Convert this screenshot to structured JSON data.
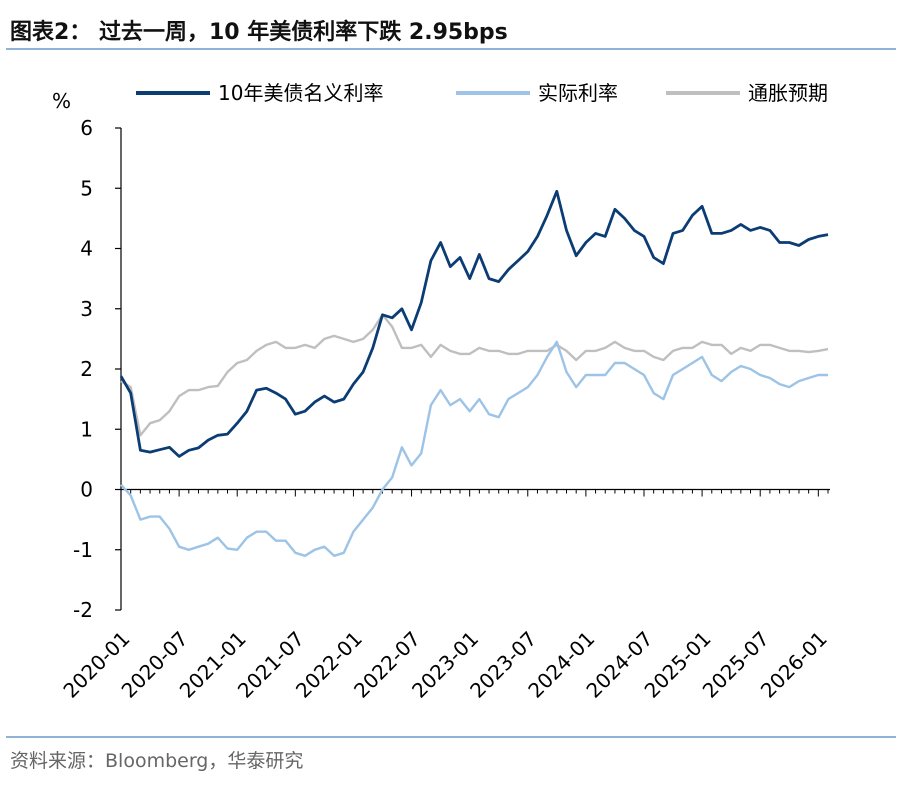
{
  "title": "图表2：  过去一周，10 年美债利率下跌 2.95bps",
  "source": "资料来源：Bloomberg，华泰研究",
  "colors": {
    "nominal": "#0b3c74",
    "real": "#9dc3e6",
    "breakeven": "#bfbfbf",
    "axis": "#000000"
  },
  "chart_data": {
    "type": "line",
    "ylabel": "%",
    "xlabel": "",
    "ylim": [
      -2,
      6
    ],
    "yticks": [
      "6",
      "5",
      "4",
      "3",
      "2",
      "1",
      "0",
      "-1",
      "-2"
    ],
    "xlim": [
      "2020-01",
      "2026-02"
    ],
    "xticks": [
      "2020-01",
      "2020-07",
      "2021-01",
      "2021-07",
      "2022-01",
      "2022-07",
      "2023-01",
      "2023-07",
      "2024-01",
      "2024-07",
      "2025-01",
      "2025-07",
      "2026-01"
    ],
    "legend_position": "top",
    "grid": false,
    "series": [
      {
        "name": "10年美债名义利率",
        "x": [
          "2020-01",
          "2020-02",
          "2020-03",
          "2020-04",
          "2020-05",
          "2020-06",
          "2020-07",
          "2020-08",
          "2020-09",
          "2020-10",
          "2020-11",
          "2020-12",
          "2021-01",
          "2021-02",
          "2021-03",
          "2021-04",
          "2021-05",
          "2021-06",
          "2021-07",
          "2021-08",
          "2021-09",
          "2021-10",
          "2021-11",
          "2021-12",
          "2022-01",
          "2022-02",
          "2022-03",
          "2022-04",
          "2022-05",
          "2022-06",
          "2022-07",
          "2022-08",
          "2022-09",
          "2022-10",
          "2022-11",
          "2022-12",
          "2023-01",
          "2023-02",
          "2023-03",
          "2023-04",
          "2023-05",
          "2023-06",
          "2023-07",
          "2023-08",
          "2023-09",
          "2023-10",
          "2023-11",
          "2023-12",
          "2024-01",
          "2024-02",
          "2024-03",
          "2024-04",
          "2024-05",
          "2024-06",
          "2024-07",
          "2024-08",
          "2024-09",
          "2024-10",
          "2024-11",
          "2024-12",
          "2025-01",
          "2025-02",
          "2025-03",
          "2025-04",
          "2025-05",
          "2025-06",
          "2025-07",
          "2025-08",
          "2025-09",
          "2025-10",
          "2025-11",
          "2025-12",
          "2026-01",
          "2026-02"
        ],
        "values": [
          1.88,
          1.6,
          0.65,
          0.62,
          0.66,
          0.7,
          0.55,
          0.65,
          0.69,
          0.82,
          0.9,
          0.92,
          1.1,
          1.3,
          1.65,
          1.68,
          1.6,
          1.5,
          1.25,
          1.3,
          1.45,
          1.55,
          1.45,
          1.5,
          1.75,
          1.95,
          2.35,
          2.9,
          2.85,
          3.0,
          2.65,
          3.1,
          3.8,
          4.1,
          3.7,
          3.85,
          3.5,
          3.9,
          3.5,
          3.45,
          3.65,
          3.8,
          3.95,
          4.2,
          4.55,
          4.95,
          4.3,
          3.88,
          4.1,
          4.25,
          4.2,
          4.65,
          4.5,
          4.3,
          4.2,
          3.85,
          3.75,
          4.25,
          4.3,
          4.55,
          4.7,
          4.25,
          4.25,
          4.3,
          4.4,
          4.3,
          4.35,
          4.3,
          4.1,
          4.1,
          4.05,
          4.15,
          4.2,
          4.23
        ]
      },
      {
        "name": "实际利率",
        "x": [
          "2020-01",
          "2020-02",
          "2020-03",
          "2020-04",
          "2020-05",
          "2020-06",
          "2020-07",
          "2020-08",
          "2020-09",
          "2020-10",
          "2020-11",
          "2020-12",
          "2021-01",
          "2021-02",
          "2021-03",
          "2021-04",
          "2021-05",
          "2021-06",
          "2021-07",
          "2021-08",
          "2021-09",
          "2021-10",
          "2021-11",
          "2021-12",
          "2022-01",
          "2022-02",
          "2022-03",
          "2022-04",
          "2022-05",
          "2022-06",
          "2022-07",
          "2022-08",
          "2022-09",
          "2022-10",
          "2022-11",
          "2022-12",
          "2023-01",
          "2023-02",
          "2023-03",
          "2023-04",
          "2023-05",
          "2023-06",
          "2023-07",
          "2023-08",
          "2023-09",
          "2023-10",
          "2023-11",
          "2023-12",
          "2024-01",
          "2024-02",
          "2024-03",
          "2024-04",
          "2024-05",
          "2024-06",
          "2024-07",
          "2024-08",
          "2024-09",
          "2024-10",
          "2024-11",
          "2024-12",
          "2025-01",
          "2025-02",
          "2025-03",
          "2025-04",
          "2025-05",
          "2025-06",
          "2025-07",
          "2025-08",
          "2025-09",
          "2025-10",
          "2025-11",
          "2025-12",
          "2026-01",
          "2026-02"
        ],
        "values": [
          0.08,
          -0.1,
          -0.5,
          -0.45,
          -0.45,
          -0.65,
          -0.95,
          -1.0,
          -0.95,
          -0.9,
          -0.8,
          -0.98,
          -1.0,
          -0.8,
          -0.7,
          -0.7,
          -0.85,
          -0.85,
          -1.05,
          -1.1,
          -1.0,
          -0.95,
          -1.1,
          -1.05,
          -0.7,
          -0.5,
          -0.3,
          0.0,
          0.2,
          0.7,
          0.4,
          0.6,
          1.4,
          1.65,
          1.4,
          1.5,
          1.3,
          1.5,
          1.25,
          1.2,
          1.5,
          1.6,
          1.7,
          1.9,
          2.2,
          2.45,
          1.95,
          1.7,
          1.9,
          1.9,
          1.9,
          2.1,
          2.1,
          2.0,
          1.9,
          1.6,
          1.5,
          1.9,
          2.0,
          2.1,
          2.2,
          1.9,
          1.8,
          1.95,
          2.05,
          2.0,
          1.9,
          1.85,
          1.75,
          1.7,
          1.8,
          1.85,
          1.9,
          1.9
        ]
      },
      {
        "name": "通胀预期",
        "x": [
          "2020-01",
          "2020-02",
          "2020-03",
          "2020-04",
          "2020-05",
          "2020-06",
          "2020-07",
          "2020-08",
          "2020-09",
          "2020-10",
          "2020-11",
          "2020-12",
          "2021-01",
          "2021-02",
          "2021-03",
          "2021-04",
          "2021-05",
          "2021-06",
          "2021-07",
          "2021-08",
          "2021-09",
          "2021-10",
          "2021-11",
          "2021-12",
          "2022-01",
          "2022-02",
          "2022-03",
          "2022-04",
          "2022-05",
          "2022-06",
          "2022-07",
          "2022-08",
          "2022-09",
          "2022-10",
          "2022-11",
          "2022-12",
          "2023-01",
          "2023-02",
          "2023-03",
          "2023-04",
          "2023-05",
          "2023-06",
          "2023-07",
          "2023-08",
          "2023-09",
          "2023-10",
          "2023-11",
          "2023-12",
          "2024-01",
          "2024-02",
          "2024-03",
          "2024-04",
          "2024-05",
          "2024-06",
          "2024-07",
          "2024-08",
          "2024-09",
          "2024-10",
          "2024-11",
          "2024-12",
          "2025-01",
          "2025-02",
          "2025-03",
          "2025-04",
          "2025-05",
          "2025-06",
          "2025-07",
          "2025-08",
          "2025-09",
          "2025-10",
          "2025-11",
          "2025-12",
          "2026-01",
          "2026-02"
        ],
        "values": [
          1.8,
          1.7,
          0.9,
          1.1,
          1.15,
          1.3,
          1.55,
          1.65,
          1.65,
          1.7,
          1.72,
          1.95,
          2.1,
          2.15,
          2.3,
          2.4,
          2.45,
          2.35,
          2.35,
          2.4,
          2.35,
          2.5,
          2.55,
          2.5,
          2.45,
          2.5,
          2.65,
          2.9,
          2.7,
          2.35,
          2.35,
          2.4,
          2.2,
          2.4,
          2.3,
          2.25,
          2.25,
          2.35,
          2.3,
          2.3,
          2.25,
          2.25,
          2.3,
          2.3,
          2.3,
          2.4,
          2.3,
          2.15,
          2.3,
          2.3,
          2.35,
          2.45,
          2.35,
          2.3,
          2.3,
          2.2,
          2.15,
          2.3,
          2.35,
          2.35,
          2.45,
          2.4,
          2.4,
          2.25,
          2.35,
          2.3,
          2.4,
          2.4,
          2.35,
          2.3,
          2.3,
          2.28,
          2.3,
          2.33
        ]
      }
    ]
  }
}
